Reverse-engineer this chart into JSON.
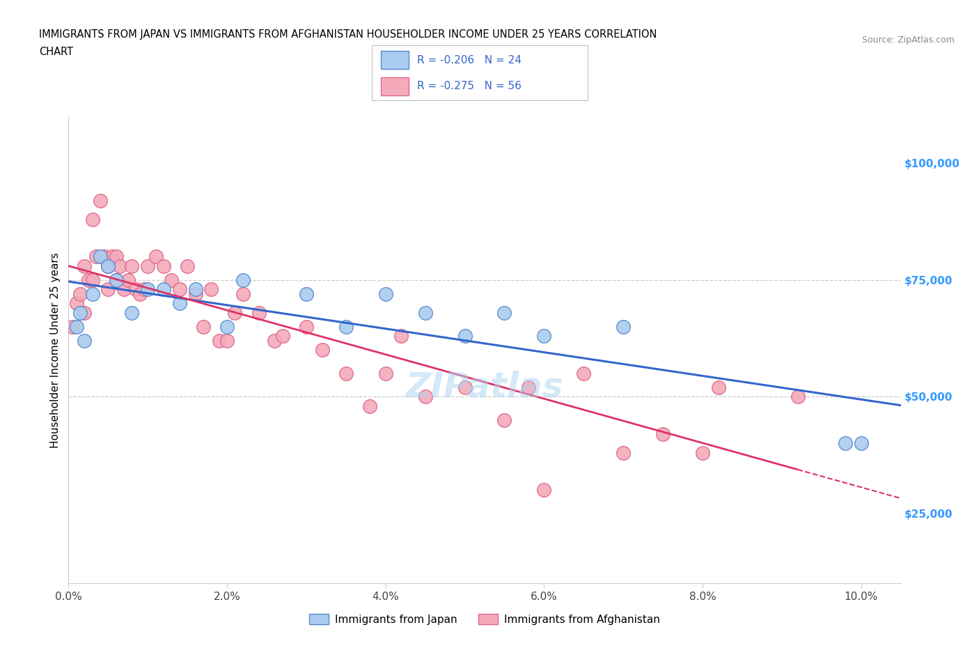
{
  "title_line1": "IMMIGRANTS FROM JAPAN VS IMMIGRANTS FROM AFGHANISTAN HOUSEHOLDER INCOME UNDER 25 YEARS CORRELATION",
  "title_line2": "CHART",
  "source": "Source: ZipAtlas.com",
  "ylabel": "Householder Income Under 25 years",
  "xlabel_ticks": [
    "0.0%",
    "2.0%",
    "4.0%",
    "6.0%",
    "8.0%",
    "10.0%"
  ],
  "xlabel_vals": [
    0.0,
    2.0,
    4.0,
    6.0,
    8.0,
    10.0
  ],
  "ytick_labels": [
    "$25,000",
    "$50,000",
    "$75,000",
    "$100,000"
  ],
  "ytick_vals": [
    25000,
    50000,
    75000,
    100000
  ],
  "y_axis_color": "#3399ff",
  "legend_label_japan": "Immigrants from Japan",
  "legend_label_afghanistan": "Immigrants from Afghanistan",
  "R_japan": -0.206,
  "N_japan": 24,
  "R_afghanistan": -0.275,
  "N_afghanistan": 56,
  "japan_color": "#aaccf0",
  "afghanistan_color": "#f4aabb",
  "japan_edge": "#5588cc",
  "afghanistan_edge": "#dd6688",
  "trendline_japan_color": "#3366cc",
  "trendline_afghanistan_color": "#dd3366",
  "watermark": "ZIPatlas",
  "japan_x": [
    0.1,
    0.15,
    0.2,
    0.3,
    0.4,
    0.5,
    0.6,
    0.8,
    1.0,
    1.2,
    1.4,
    1.6,
    2.0,
    2.2,
    3.0,
    3.5,
    4.0,
    4.5,
    5.0,
    5.5,
    6.0,
    7.0,
    9.8,
    10.0
  ],
  "japan_y": [
    65000,
    68000,
    62000,
    72000,
    80000,
    78000,
    75000,
    68000,
    73000,
    73000,
    70000,
    73000,
    65000,
    75000,
    72000,
    65000,
    72000,
    68000,
    63000,
    68000,
    63000,
    65000,
    40000,
    40000
  ],
  "afghanistan_x": [
    0.05,
    0.1,
    0.15,
    0.2,
    0.2,
    0.25,
    0.3,
    0.3,
    0.35,
    0.4,
    0.45,
    0.5,
    0.5,
    0.55,
    0.6,
    0.6,
    0.65,
    0.7,
    0.75,
    0.8,
    0.85,
    0.9,
    0.95,
    1.0,
    1.1,
    1.2,
    1.3,
    1.4,
    1.5,
    1.6,
    1.7,
    1.8,
    1.9,
    2.0,
    2.1,
    2.2,
    2.4,
    2.6,
    2.7,
    3.0,
    3.2,
    3.5,
    3.8,
    4.0,
    4.2,
    4.5,
    5.0,
    5.5,
    5.8,
    6.0,
    6.5,
    7.0,
    7.5,
    8.0,
    8.2,
    9.2
  ],
  "afghanistan_y": [
    65000,
    70000,
    72000,
    78000,
    68000,
    75000,
    88000,
    75000,
    80000,
    92000,
    80000,
    78000,
    73000,
    80000,
    80000,
    75000,
    78000,
    73000,
    75000,
    78000,
    73000,
    72000,
    73000,
    78000,
    80000,
    78000,
    75000,
    73000,
    78000,
    72000,
    65000,
    73000,
    62000,
    62000,
    68000,
    72000,
    68000,
    62000,
    63000,
    65000,
    60000,
    55000,
    48000,
    55000,
    63000,
    50000,
    52000,
    45000,
    52000,
    30000,
    55000,
    38000,
    42000,
    38000,
    52000,
    50000
  ],
  "xlim": [
    0.0,
    10.5
  ],
  "ylim": [
    10000,
    110000
  ],
  "trendline_x_start": 0.0,
  "trendline_x_end": 10.5,
  "figsize": [
    14.06,
    9.3
  ],
  "dpi": 100
}
